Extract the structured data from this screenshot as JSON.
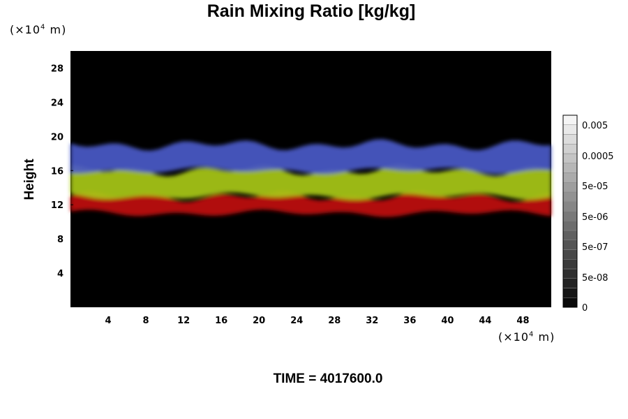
{
  "chart_data": {
    "type": "heatmap",
    "title": "Rain Mixing Ratio [kg/kg]",
    "ylabel": "Height",
    "xlabel": "",
    "x_unit": {
      "prefix": "(×10",
      "exponent": "4",
      "suffix": " m)"
    },
    "y_unit": {
      "prefix": "(×10",
      "exponent": "4",
      "suffix": " m)"
    },
    "xlim": [
      0,
      51
    ],
    "ylim": [
      0,
      30
    ],
    "x_ticks": [
      4,
      8,
      12,
      16,
      20,
      24,
      28,
      32,
      36,
      40,
      44,
      48
    ],
    "y_ticks": [
      4,
      8,
      12,
      16,
      20,
      24,
      28
    ],
    "grid": false,
    "background_color": "#000000",
    "layers": [
      {
        "color": "#c01010",
        "band": [
          11,
          13
        ]
      },
      {
        "color": "#a8c818",
        "band": [
          13,
          16
        ]
      },
      {
        "color": "#4a5ac8",
        "band": [
          16,
          19
        ]
      }
    ],
    "colorbar": {
      "placement": "right",
      "scale": "log",
      "labels": [
        "0.005",
        "0.0005",
        "5e-05",
        "5e-06",
        "5e-07",
        "5e-08",
        "0"
      ],
      "steps": 20
    },
    "footer": "TIME = 4017600.0"
  }
}
